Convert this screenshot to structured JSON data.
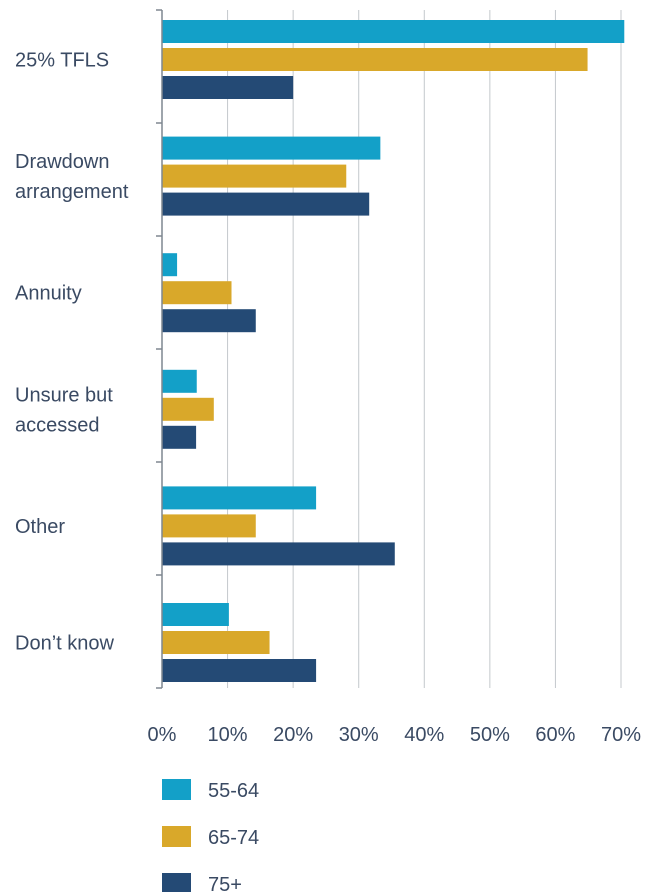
{
  "chart_data": {
    "type": "bar",
    "orientation": "horizontal",
    "categories": [
      [
        "25% TFLS"
      ],
      [
        "Drawdown",
        "arrangement"
      ],
      [
        "Annuity"
      ],
      [
        "Unsure but",
        "accessed"
      ],
      [
        "Other"
      ],
      [
        "Don’t know"
      ]
    ],
    "series": [
      {
        "name": "55-64",
        "color": "#13a0c8",
        "values": [
          70.5,
          33.3,
          2.3,
          5.3,
          23.5,
          10.2
        ]
      },
      {
        "name": "65-74",
        "color": "#d9a82a",
        "values": [
          64.9,
          28.1,
          10.6,
          7.9,
          14.3,
          16.4
        ]
      },
      {
        "name": "75+",
        "color": "#244a75",
        "values": [
          20.0,
          31.6,
          14.3,
          5.2,
          35.5,
          23.5
        ]
      }
    ],
    "xlim": [
      0,
      70
    ],
    "ticks": [
      "0%",
      "10%",
      "20%",
      "30%",
      "40%",
      "50%",
      "60%",
      "70%"
    ],
    "grid": true,
    "legend_position": "bottom"
  }
}
